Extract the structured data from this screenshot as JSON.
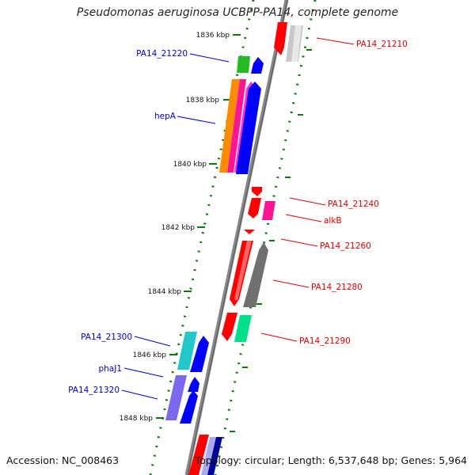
{
  "title": "Pseudomonas aeruginosa UCBPP-PA14, complete genome",
  "footer": {
    "accession": "Accession: NC_008463",
    "topology": "Topology: circular; Length: 6,537,648 bp; Genes: 5,964"
  },
  "scale_labels": [
    "1836 kbp",
    "1838 kbp",
    "1840 kbp",
    "1842 kbp",
    "1844 kbp",
    "1846 kbp",
    "1848 kbp"
  ],
  "gene_labels": {
    "left": [
      "PA14_21220",
      "hepA",
      "PA14_21300",
      "phaJ1",
      "PA14_21320"
    ],
    "right": [
      "PA14_21210",
      "PA14_21240",
      "alkB",
      "PA14_21260",
      "PA14_21280",
      "PA14_21290"
    ]
  },
  "colors": {
    "left_label": "#0000cc",
    "right_label": "#dd0000",
    "scale_tick": "#0a7a0a",
    "axis": "#888888",
    "red": "#ff0000",
    "blue": "#0000ff",
    "green": "#22bb22",
    "orange": "#ff8c00",
    "magenta": "#ff1493",
    "pink": "#ff33cc",
    "cyan": "#22c8c8",
    "sea_green": "#00e08a",
    "grey": "#707070",
    "light_grey": "#c8c8c8",
    "slate_blue": "#7b68ee",
    "navy": "#000099",
    "lavender": "#aaaaee"
  }
}
